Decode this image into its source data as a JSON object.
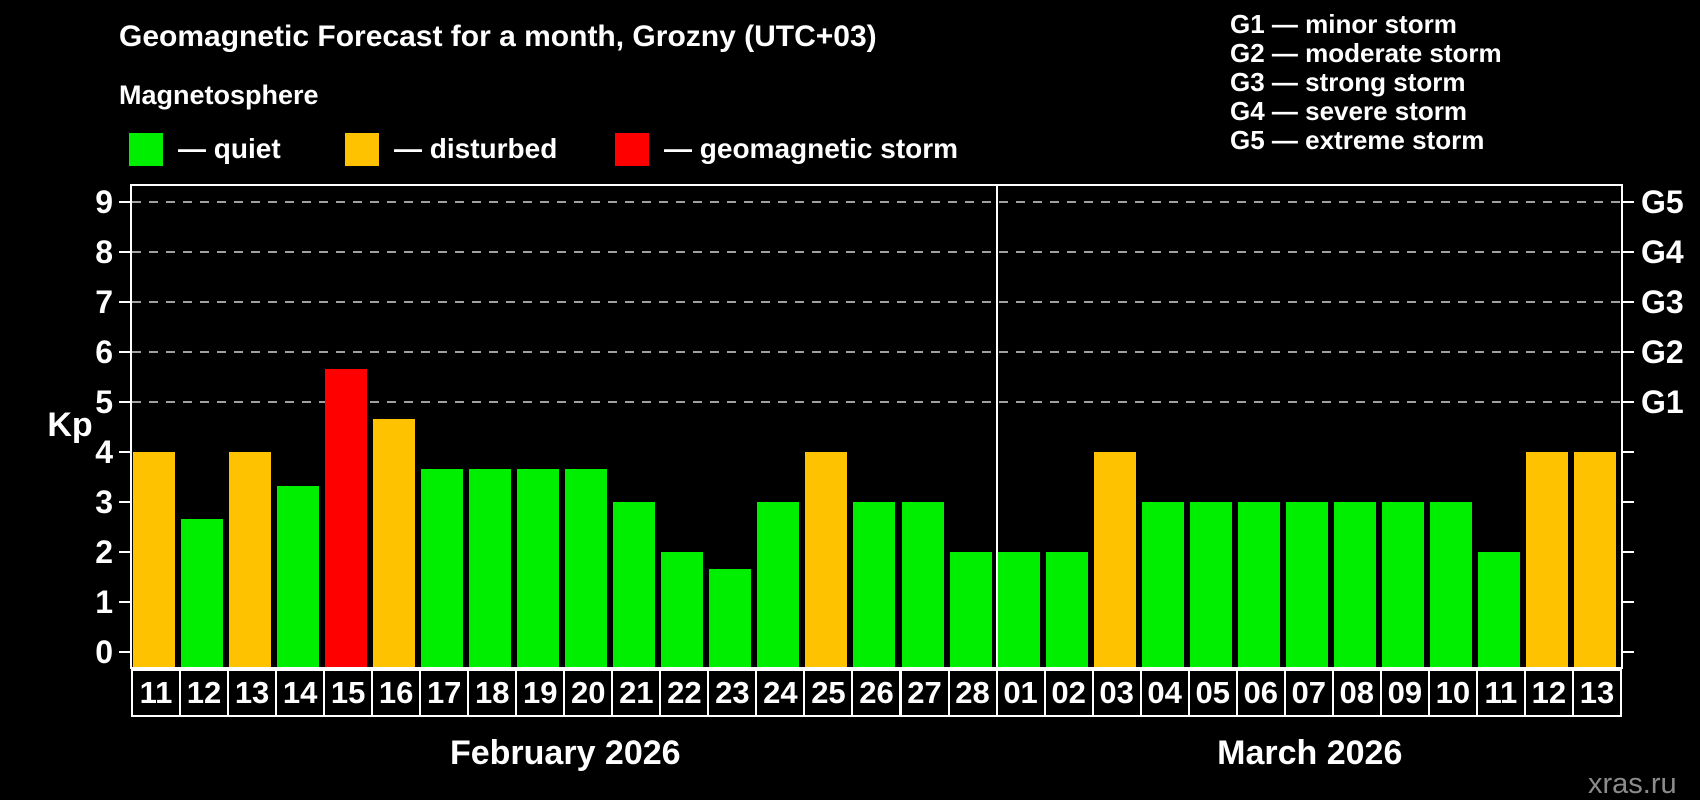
{
  "title": "Geomagnetic Forecast for a month, Grozny (UTC+03)",
  "subtitle": "Magnetosphere",
  "watermark": "xras.ru",
  "colors": {
    "quiet": "#00EF00",
    "disturbed": "#FFC200",
    "storm": "#FF0000",
    "background": "#000000",
    "grid": "#A0A0A0",
    "axis": "#FFFFFF"
  },
  "legend": [
    {
      "key": "quiet",
      "label": "— quiet"
    },
    {
      "key": "disturbed",
      "label": "— disturbed"
    },
    {
      "key": "storm",
      "label": "— geomagnetic storm"
    }
  ],
  "g_legend": [
    "G1 — minor storm",
    "G2 — moderate storm",
    "G3 — strong storm",
    "G4 — severe storm",
    "G5 — extreme storm"
  ],
  "chart_data": {
    "type": "bar",
    "title": "Geomagnetic Forecast for a month, Grozny (UTC+03)",
    "ylabel": "Kp",
    "ylim": [
      0,
      9
    ],
    "yticks": [
      0,
      1,
      2,
      3,
      4,
      5,
      6,
      7,
      8,
      9
    ],
    "grid_kp": [
      5,
      6,
      7,
      8,
      9
    ],
    "grid_style": "dashed",
    "legend_position": "top-left",
    "right_axis_labels": [
      {
        "kp": 9,
        "label": "G5"
      },
      {
        "kp": 8,
        "label": "G4"
      },
      {
        "kp": 7,
        "label": "G3"
      },
      {
        "kp": 6,
        "label": "G2"
      },
      {
        "kp": 5,
        "label": "G1"
      }
    ],
    "months": [
      {
        "label": "February 2026",
        "days": 18
      },
      {
        "label": "March 2026",
        "days": 13
      }
    ],
    "bars": [
      {
        "date": "11",
        "kp": 4.0,
        "status": "disturbed"
      },
      {
        "date": "12",
        "kp": 2.67,
        "status": "quiet"
      },
      {
        "date": "13",
        "kp": 4.0,
        "status": "disturbed"
      },
      {
        "date": "14",
        "kp": 3.33,
        "status": "quiet"
      },
      {
        "date": "15",
        "kp": 5.67,
        "status": "storm"
      },
      {
        "date": "16",
        "kp": 4.67,
        "status": "disturbed"
      },
      {
        "date": "17",
        "kp": 3.67,
        "status": "quiet"
      },
      {
        "date": "18",
        "kp": 3.67,
        "status": "quiet"
      },
      {
        "date": "19",
        "kp": 3.67,
        "status": "quiet"
      },
      {
        "date": "20",
        "kp": 3.67,
        "status": "quiet"
      },
      {
        "date": "21",
        "kp": 3.0,
        "status": "quiet"
      },
      {
        "date": "22",
        "kp": 2.0,
        "status": "quiet"
      },
      {
        "date": "23",
        "kp": 1.67,
        "status": "quiet"
      },
      {
        "date": "24",
        "kp": 3.0,
        "status": "quiet"
      },
      {
        "date": "25",
        "kp": 4.0,
        "status": "disturbed"
      },
      {
        "date": "26",
        "kp": 3.0,
        "status": "quiet"
      },
      {
        "date": "27",
        "kp": 3.0,
        "status": "quiet"
      },
      {
        "date": "28",
        "kp": 2.0,
        "status": "quiet"
      },
      {
        "date": "01",
        "kp": 2.0,
        "status": "quiet"
      },
      {
        "date": "02",
        "kp": 2.0,
        "status": "quiet"
      },
      {
        "date": "03",
        "kp": 4.0,
        "status": "disturbed"
      },
      {
        "date": "04",
        "kp": 3.0,
        "status": "quiet"
      },
      {
        "date": "05",
        "kp": 3.0,
        "status": "quiet"
      },
      {
        "date": "06",
        "kp": 3.0,
        "status": "quiet"
      },
      {
        "date": "07",
        "kp": 3.0,
        "status": "quiet"
      },
      {
        "date": "08",
        "kp": 3.0,
        "status": "quiet"
      },
      {
        "date": "09",
        "kp": 3.0,
        "status": "quiet"
      },
      {
        "date": "10",
        "kp": 3.0,
        "status": "quiet"
      },
      {
        "date": "11",
        "kp": 2.0,
        "status": "quiet"
      },
      {
        "date": "12",
        "kp": 4.0,
        "status": "disturbed"
      },
      {
        "date": "13",
        "kp": 4.0,
        "status": "disturbed"
      }
    ]
  }
}
